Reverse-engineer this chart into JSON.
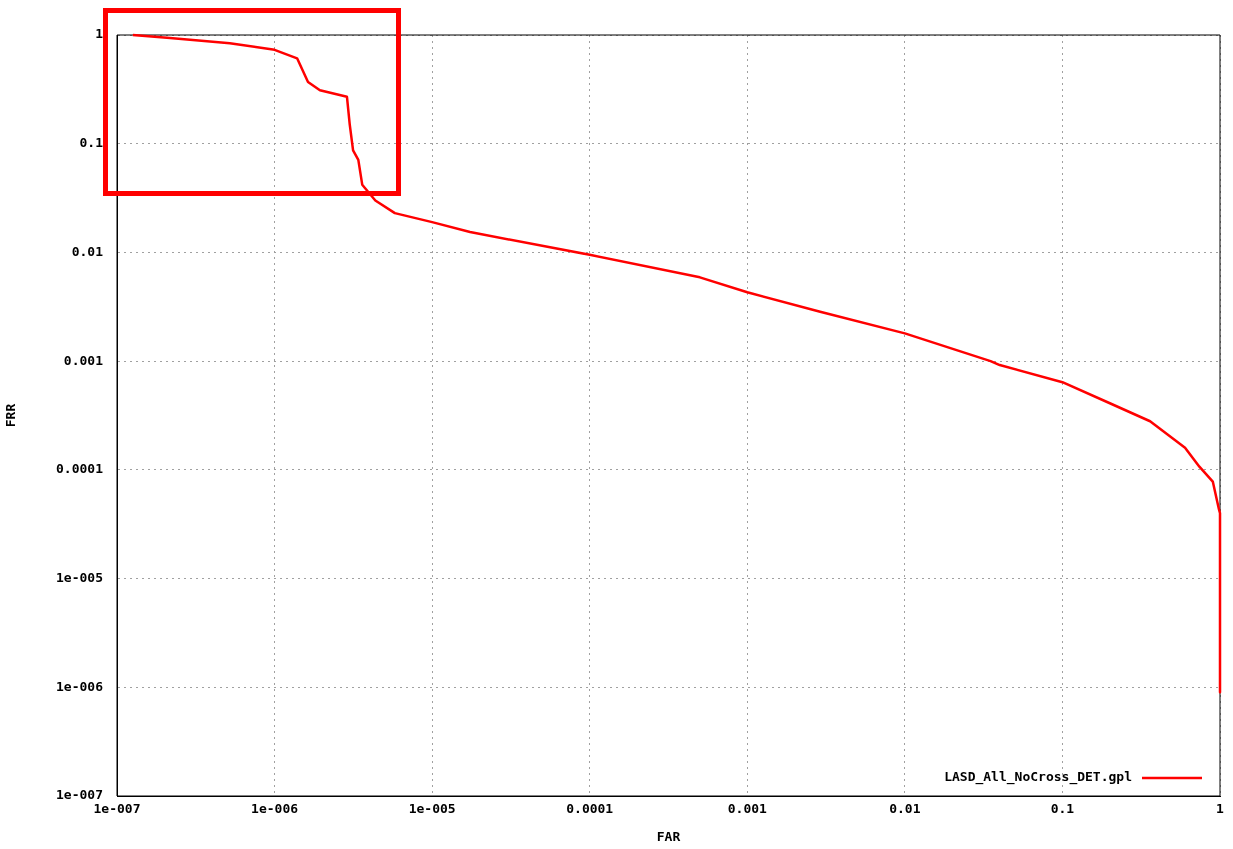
{
  "chart_data": {
    "type": "line",
    "xlabel": "FAR",
    "ylabel": "FRR",
    "log": "xy",
    "grid": true,
    "legend": "bottom right",
    "xlim": [
      1e-07,
      1
    ],
    "ylim": [
      1e-07,
      1
    ],
    "xticks": [
      {
        "value": 1e-07,
        "label": "1e-007"
      },
      {
        "value": 1e-06,
        "label": "1e-006"
      },
      {
        "value": 1e-05,
        "label": "1e-005"
      },
      0.0001,
      0.001,
      0.01,
      0.1,
      1
    ],
    "yticks": [
      {
        "value": 1e-07,
        "label": "1e-007"
      },
      {
        "value": 1e-06,
        "label": "1e-006"
      },
      {
        "value": 1e-05,
        "label": "1e-005"
      },
      0.0001,
      0.001,
      0.01,
      0.1,
      1
    ],
    "series": [
      {
        "name": "LASD_All_NoCross_DET.gpl",
        "color": "#ff0000",
        "x": [
          1.26e-07,
          2.17e-07,
          5.2e-07,
          1e-06,
          1.39e-06,
          1.63e-06,
          1.94e-06,
          2.88e-06,
          3e-06,
          3.15e-06,
          3.4e-06,
          3.6e-06,
          4.36e-06,
          5.8e-06,
          1e-05,
          1.74e-05,
          0.0001,
          0.0005,
          0.001,
          0.0029,
          0.01,
          0.035,
          0.04,
          0.1,
          0.2,
          0.36,
          0.6,
          0.74,
          0.9,
          0.986,
          1,
          1
        ],
        "values": [
          1,
          0.94,
          0.84,
          0.73,
          0.61,
          0.37,
          0.31,
          0.27,
          0.15,
          0.087,
          0.071,
          0.042,
          0.03,
          0.023,
          0.019,
          0.0154,
          0.0095,
          0.0059,
          0.0043,
          0.00285,
          0.0018,
          0.001,
          0.00092,
          0.00064,
          0.00041,
          0.00028,
          0.00016,
          0.000107,
          7.8e-05,
          4.3e-05,
          4e-05,
          9e-07
        ]
      }
    ]
  }
}
